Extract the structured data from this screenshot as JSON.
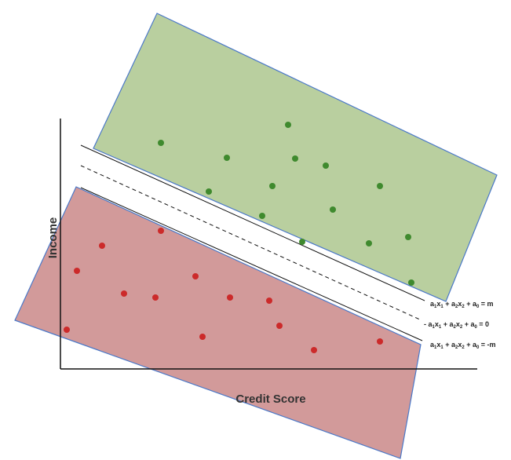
{
  "axes": {
    "x_label": "Credit Score",
    "y_label": "Income"
  },
  "colors": {
    "green_region_fill": "#b9cf9f",
    "red_region_fill": "#d29a9a",
    "region_stroke": "#4a78c8",
    "green_point": "#3f8a2e",
    "red_point": "#cc2a2a",
    "line": "#111111",
    "axis": "#111111"
  },
  "equations": {
    "upper": {
      "a": "a",
      "s1": "1",
      "x": "x",
      "s2": "1",
      "mid": " + a",
      "s3": "2",
      "x2": "x",
      "s4": "2",
      "tail": " + a",
      "s5": "0",
      "rhs": " = m"
    },
    "middle": {
      "prefix": "- ",
      "a": "a",
      "s1": "1",
      "x": "x",
      "s2": "1",
      "mid": " + a",
      "s3": "2",
      "x2": "x",
      "s4": "2",
      "tail": " + a",
      "s5": "0",
      "rhs": " = 0"
    },
    "lower": {
      "a": "a",
      "s1": "1",
      "x": "x",
      "s2": "1",
      "mid": " + a",
      "s3": "2",
      "x2": "x",
      "s4": "2",
      "tail": " + a",
      "s5": "0",
      "rhs": " = -m"
    }
  }
}
